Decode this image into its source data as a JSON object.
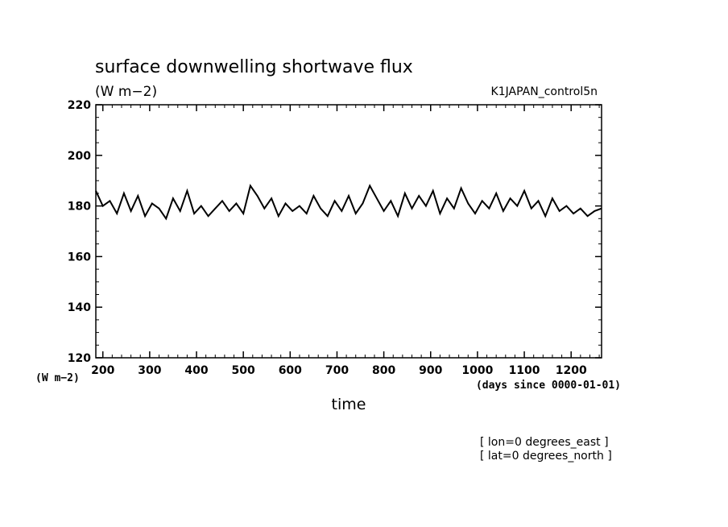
{
  "chart_data": {
    "type": "line",
    "title": "surface downwelling shortwave flux",
    "units_label": "(W m−2)",
    "y_axis_units": "(W m−2)",
    "experiment_label": "K1JAPAN_control5n",
    "xlabel": "time",
    "x_units": "(days since 0000-01-01)",
    "location_lines": [
      "[ lon=0 degrees_east ]",
      "[ lat=0 degrees_north ]"
    ],
    "xlim": [
      185,
      1265
    ],
    "ylim": [
      120,
      220
    ],
    "x_ticks": [
      200,
      300,
      400,
      500,
      600,
      700,
      800,
      900,
      1000,
      1100,
      1200
    ],
    "y_ticks": [
      120,
      140,
      160,
      180,
      200,
      220
    ],
    "series": [
      {
        "x": [
          185,
          200,
          215,
          230,
          245,
          260,
          275,
          290,
          305,
          320,
          335,
          350,
          365,
          380,
          395,
          410,
          425,
          440,
          455,
          470,
          485,
          500,
          515,
          530,
          545,
          560,
          575,
          590,
          605,
          620,
          635,
          650,
          665,
          680,
          695,
          710,
          725,
          740,
          755,
          770,
          785,
          800,
          815,
          830,
          845,
          860,
          875,
          890,
          905,
          920,
          935,
          950,
          965,
          980,
          995,
          1010,
          1025,
          1040,
          1055,
          1070,
          1085,
          1100,
          1115,
          1130,
          1145,
          1160,
          1175,
          1190,
          1205,
          1220,
          1235,
          1250,
          1265
        ],
        "y": [
          186,
          180,
          182,
          177,
          185,
          178,
          184,
          176,
          181,
          179,
          175,
          183,
          178,
          186,
          177,
          180,
          176,
          179,
          182,
          178,
          181,
          177,
          188,
          184,
          179,
          183,
          176,
          181,
          178,
          180,
          177,
          184,
          179,
          176,
          182,
          178,
          184,
          177,
          181,
          188,
          183,
          178,
          182,
          176,
          185,
          179,
          184,
          180,
          186,
          177,
          183,
          179,
          187,
          181,
          177,
          182,
          179,
          185,
          178,
          183,
          180,
          186,
          179,
          182,
          176,
          183,
          178,
          180,
          177,
          179,
          176,
          178,
          179
        ]
      }
    ]
  }
}
